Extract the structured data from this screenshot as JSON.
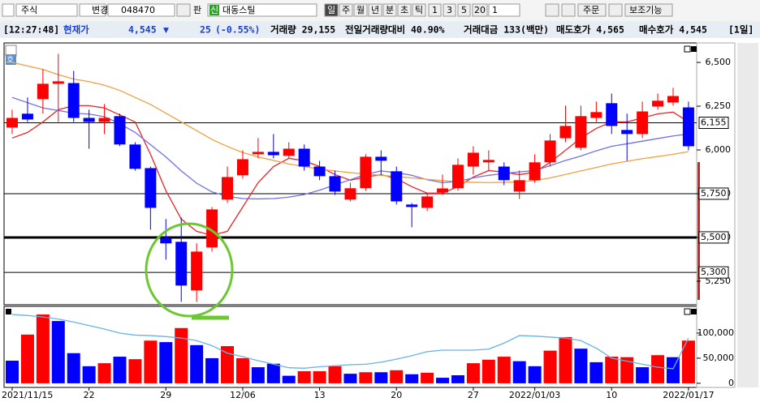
{
  "toolbar": {
    "market": "주식",
    "change": "변경",
    "code": "048470",
    "sell": "판",
    "badge": "신",
    "name": "대동스틸",
    "periods": [
      "일",
      "주",
      "월",
      "년",
      "분",
      "초",
      "틱"
    ],
    "intervals": [
      "1",
      "3",
      "5",
      "20"
    ],
    "interval_input": "1",
    "order": "주문",
    "aux": "보조기능"
  },
  "info_bar": {
    "time": "[12:27:48]",
    "price_label": "현재가",
    "price": "4,545",
    "arrow": "▼",
    "change": "25",
    "change_pct": "(-0.55%)",
    "volume": "거래량 29,155",
    "vol_ratio": "전일거래량대비 40.90%",
    "amount": "거래대금 133(백만)",
    "ask": "매도호가 4,565",
    "bid": "매수호가 4,545",
    "period": "[1일]"
  },
  "chart_data": [
    {
      "type": "candlestick",
      "corner_label": "호",
      "up_color": "#ff0000",
      "down_color": "#0000ff",
      "open": [
        6128,
        6207,
        6290,
        6378,
        6382,
        6183,
        6160,
        6193,
        6031,
        5896,
        5498,
        5475,
        5197,
        5443,
        5716,
        5855,
        5975,
        5989,
        5966,
        6007,
        5905,
        5850,
        5716,
        5781,
        5961,
        5878,
        5688,
        5669,
        5757,
        5781,
        5905,
        5929,
        5905,
        5762,
        5827,
        5929,
        6067,
        6012,
        6183,
        6267,
        6114,
        6091,
        6248,
        6271,
        6243
      ],
      "high": [
        6230,
        6300,
        6461,
        6549,
        6452,
        6230,
        6262,
        6207,
        6044,
        5905,
        5605,
        5614,
        5466,
        5674,
        5905,
        5998,
        6068,
        6091,
        6044,
        6031,
        5938,
        5882,
        5813,
        5975,
        5998,
        5905,
        5697,
        5753,
        5859,
        5952,
        6021,
        5998,
        5929,
        5882,
        5975,
        6091,
        6253,
        6253,
        6276,
        6322,
        6207,
        6276,
        6322,
        6355,
        6276
      ],
      "low": [
        6091,
        6160,
        6207,
        6160,
        6160,
        6007,
        6091,
        6021,
        5882,
        5544,
        5373,
        5132,
        5132,
        5419,
        5697,
        5836,
        5952,
        5952,
        5952,
        5882,
        5827,
        5743,
        5706,
        5767,
        5859,
        5688,
        5558,
        5651,
        5743,
        5767,
        5859,
        5882,
        5799,
        5720,
        5813,
        5905,
        6044,
        5998,
        6160,
        6091,
        5938,
        6068,
        6230,
        6253,
        5998
      ],
      "close": [
        6183,
        6174,
        6378,
        6392,
        6183,
        6160,
        6183,
        6031,
        5892,
        5669,
        5466,
        5225,
        5419,
        5660,
        5845,
        5947,
        5989,
        5970,
        6007,
        5905,
        5850,
        5762,
        5781,
        5961,
        5938,
        5706,
        5674,
        5734,
        5780,
        5915,
        5984,
        5943,
        5827,
        5827,
        5929,
        6054,
        6137,
        6193,
        6216,
        6137,
        6091,
        6220,
        6281,
        6308,
        6021
      ],
      "series": [
        {
          "color": "#e8262a",
          "values": [
            6068,
            6100,
            6160,
            6230,
            6253,
            6253,
            6240,
            6200,
            6160,
            5975,
            5767,
            5605,
            5535,
            5512,
            5535,
            5674,
            5813,
            5905,
            5952,
            5938,
            5905,
            5859,
            5827,
            5845,
            5859,
            5836,
            5790,
            5753,
            5753,
            5790,
            5845,
            5882,
            5873,
            5859,
            5873,
            5929,
            5998,
            6068,
            6123,
            6160,
            6160,
            6183,
            6206,
            6216,
            6160
          ]
        },
        {
          "color": "#6f6fe8",
          "values": [
            6300,
            6270,
            6240,
            6225,
            6210,
            6205,
            6190,
            6150,
            6100,
            6030,
            5960,
            5880,
            5810,
            5760,
            5735,
            5722,
            5720,
            5722,
            5730,
            5745,
            5770,
            5800,
            5830,
            5860,
            5880,
            5870,
            5855,
            5830,
            5813,
            5820,
            5840,
            5855,
            5865,
            5875,
            5882,
            5910,
            5940,
            5965,
            5995,
            6021,
            6035,
            6050,
            6065,
            6080,
            6091
          ]
        },
        {
          "color": "#f0a040",
          "values": [
            6500,
            6480,
            6460,
            6430,
            6405,
            6390,
            6370,
            6340,
            6300,
            6260,
            6210,
            6160,
            6110,
            6060,
            6020,
            5985,
            5960,
            5940,
            5920,
            5905,
            5890,
            5880,
            5870,
            5862,
            5855,
            5848,
            5840,
            5832,
            5825,
            5818,
            5815,
            5813,
            5815,
            5818,
            5825,
            5840,
            5860,
            5880,
            5900,
            5920,
            5935,
            5950,
            5962,
            5975,
            5990
          ]
        }
      ],
      "hlines": [
        {
          "value": 6155,
          "label": "6,155",
          "width": 1
        },
        {
          "value": 5750,
          "label": "5,750",
          "width": 1
        },
        {
          "value": 5500,
          "label": "5,500",
          "width": 3
        },
        {
          "value": 5300,
          "label": "5,300",
          "width": 1
        }
      ],
      "ylim": [
        5120,
        6602
      ],
      "yticks": [
        {
          "value": 6500,
          "label": "6,500"
        },
        {
          "value": 6250,
          "label": "6,250"
        },
        {
          "value": 6000,
          "label": "6,000"
        },
        {
          "value": 5750,
          "label": "5,750"
        },
        {
          "value": 5500,
          "label": "5,500"
        },
        {
          "value": 5250,
          "label": "5,250"
        }
      ]
    },
    {
      "type": "bar",
      "categories": [
        "2021/11/15",
        null,
        null,
        null,
        null,
        "22",
        null,
        null,
        null,
        null,
        "29",
        null,
        null,
        null,
        null,
        "12/06",
        null,
        null,
        null,
        null,
        "13",
        null,
        null,
        null,
        null,
        "20",
        null,
        null,
        null,
        null,
        "27",
        null,
        null,
        null,
        "2022/01/03",
        null,
        null,
        null,
        null,
        "10",
        null,
        null,
        null,
        null,
        "2022/01/17"
      ],
      "values": [
        45000,
        97000,
        137000,
        124000,
        60000,
        34000,
        40000,
        53000,
        48000,
        85000,
        82000,
        110000,
        76000,
        50000,
        74000,
        50000,
        32000,
        39000,
        15000,
        24000,
        24000,
        34000,
        19000,
        22000,
        22000,
        26000,
        18000,
        21000,
        11000,
        16000,
        40000,
        47000,
        53000,
        44000,
        34000,
        65000,
        92000,
        69000,
        42000,
        53000,
        52000,
        32000,
        56000,
        52000,
        85000
      ],
      "colors": [
        "#0000ff",
        "#ff0000",
        "#ff0000",
        "#0000ff",
        "#0000ff",
        "#0000ff",
        "#ff0000",
        "#0000ff",
        "#ff0000",
        "#ff0000",
        "#0000ff",
        "#ff0000",
        "#0000ff",
        "#0000ff",
        "#ff0000",
        "#ff0000",
        "#0000ff",
        "#0000ff",
        "#0000ff",
        "#ff0000",
        "#ff0000",
        "#ff0000",
        "#0000ff",
        "#ff0000",
        "#0000ff",
        "#ff0000",
        "#0000ff",
        "#ff0000",
        "#0000ff",
        "#0000ff",
        "#ff0000",
        "#ff0000",
        "#ff0000",
        "#0000ff",
        "#0000ff",
        "#ff0000",
        "#ff0000",
        "#0000ff",
        "#0000ff",
        "#ff0000",
        "#ff0000",
        "#0000ff",
        "#ff0000",
        "#0000ff",
        "#ff0000"
      ],
      "series": [
        {
          "color": "#66b3e6",
          "values": [
            137000,
            135000,
            132000,
            128000,
            122000,
            115000,
            108000,
            100000,
            96000,
            95000,
            93000,
            90000,
            85000,
            75000,
            60000,
            53000,
            45000,
            38000,
            31000,
            30000,
            33000,
            35000,
            37000,
            38000,
            42000,
            48000,
            55000,
            63000,
            66000,
            66000,
            66000,
            68000,
            80000,
            95000,
            94000,
            92000,
            90000,
            85000,
            70000,
            50000,
            44000,
            38000,
            32000,
            29000,
            90000
          ]
        }
      ],
      "ylim": [
        -5000,
        150000
      ],
      "yticks": [
        {
          "value": 100000,
          "label": "100,000"
        },
        {
          "value": 50000,
          "label": "50,000"
        },
        0
      ]
    }
  ]
}
